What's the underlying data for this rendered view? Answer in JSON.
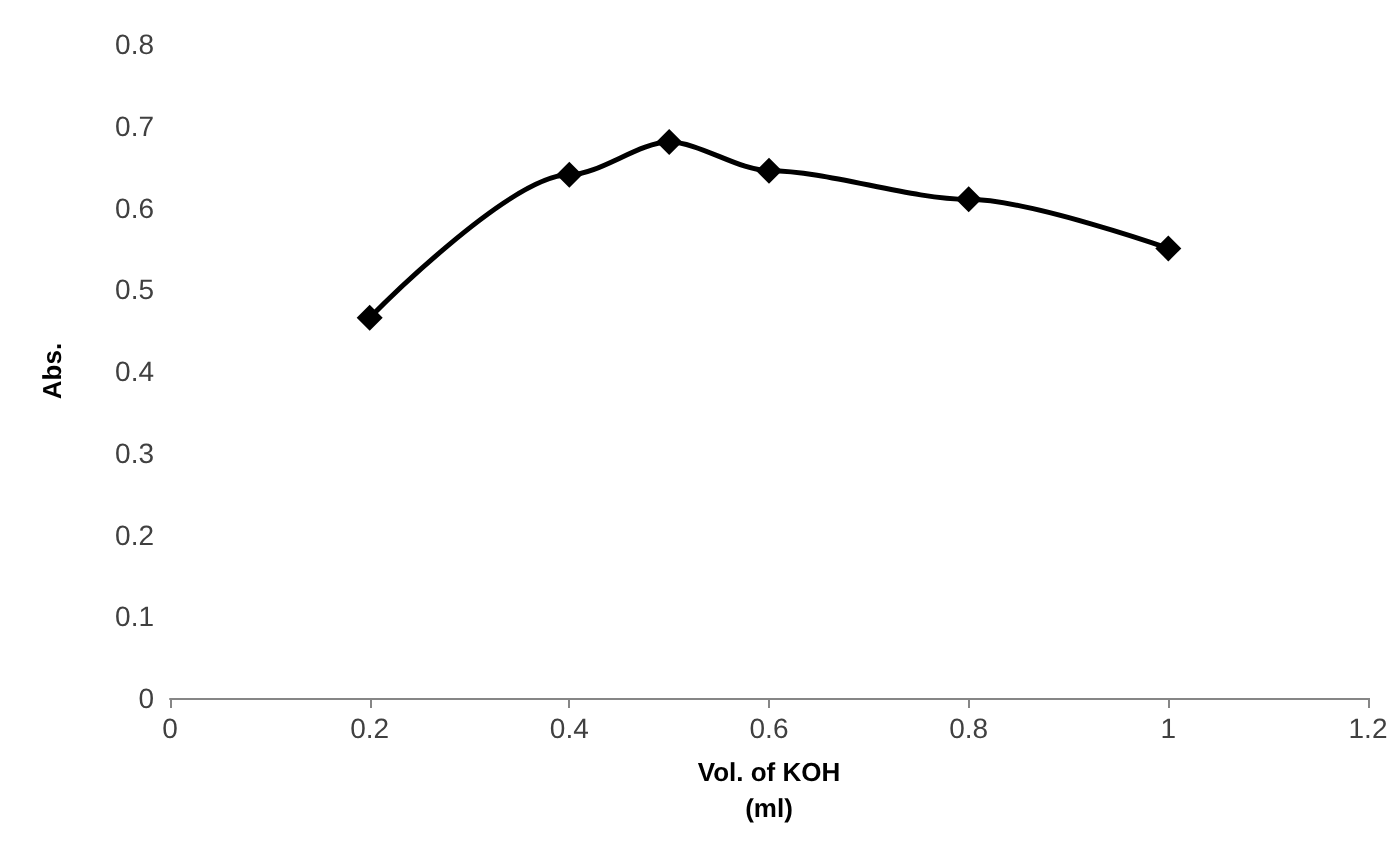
{
  "chart_data": {
    "type": "line",
    "xlabel": "Vol. of KOH\n(ml)",
    "ylabel": "Abs.",
    "x": [
      0.2,
      0.4,
      0.5,
      0.6,
      0.8,
      1
    ],
    "series": [
      {
        "color": "#000000",
        "values": [
          0.465,
          0.64,
          0.68,
          0.645,
          0.61,
          0.55
        ]
      }
    ],
    "xlim": [
      0,
      1.2
    ],
    "xticks": [
      0,
      0.2,
      0.4,
      0.6,
      0.8,
      1,
      1.2
    ],
    "ylim": [
      0,
      0.8
    ],
    "yticks": [
      0,
      0.1,
      0.2,
      0.3,
      0.4,
      0.5,
      0.6,
      0.7,
      0.8
    ],
    "grid": false,
    "marker": "diamond",
    "line_style": "solid"
  }
}
